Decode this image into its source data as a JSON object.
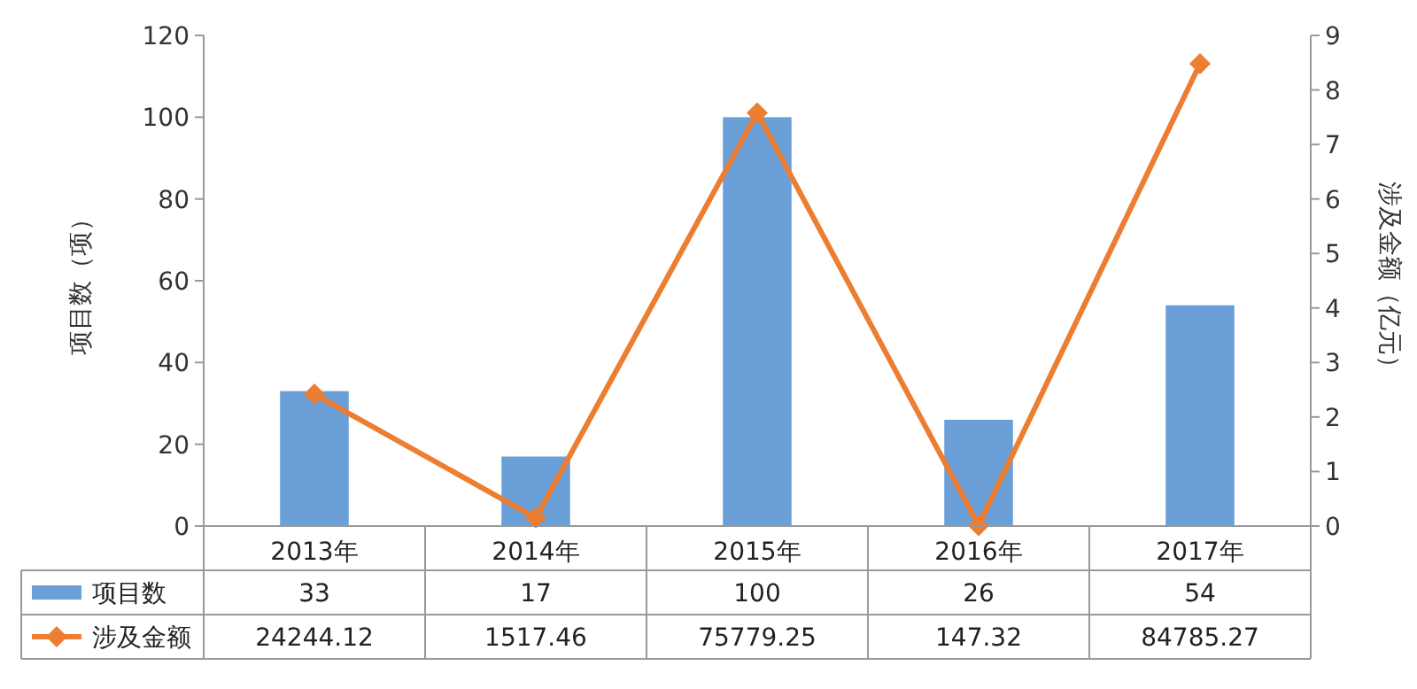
{
  "chart_data": {
    "type": "bar",
    "categories": [
      "2013年",
      "2014年",
      "2015年",
      "2016年",
      "2017年"
    ],
    "series": [
      {
        "name": "项目数",
        "color": "#6a9fd8",
        "values": [
          33,
          17,
          100,
          26,
          54
        ],
        "value_labels": [
          "33",
          "17",
          "100",
          "26",
          "54"
        ]
      },
      {
        "name": "涉及金额",
        "type": "line",
        "axis": "y2",
        "color": "#ed7d31",
        "marker": "diamond",
        "values": [
          2.42,
          0.15,
          7.58,
          0.01,
          8.48
        ]
      }
    ],
    "annotations": [
      "24244.12",
      "1517.46",
      "75779.25",
      "147.32",
      "84785.27"
    ],
    "ylabel": "项目数（项）",
    "y2label": "涉及金额（亿元）",
    "ylim": [
      0,
      120
    ],
    "yticks": [
      0,
      20,
      40,
      60,
      80,
      100,
      120
    ],
    "y2lim": [
      0,
      9
    ],
    "y2ticks": [
      0,
      1,
      2,
      3,
      4,
      5,
      6,
      7,
      8,
      9
    ],
    "legend": "bottom",
    "grid": false
  }
}
